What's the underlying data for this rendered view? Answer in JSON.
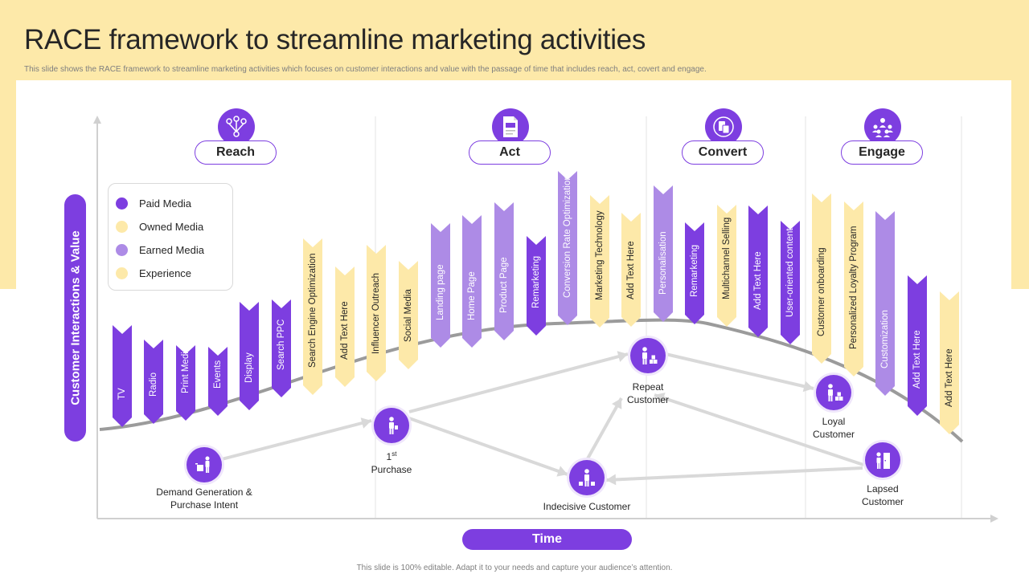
{
  "title": "RACE framework to streamline marketing activities",
  "subtitle": "This slide shows the RACE  framework to streamline marketing activities which focuses on customer interactions and value with the passage of time that includes reach, act, covert and engage.",
  "footer": "This slide is 100% editable. Adapt it to your needs and capture your audience’s attention.",
  "axes": {
    "y_label": "Customer Interactions & Value",
    "x_label": "Time"
  },
  "colors": {
    "paid": "#7d3ee0",
    "owned": "#fde9a9",
    "earned": "#ad8be6",
    "experience": "#fde9a9",
    "band": "#fde9a9",
    "curve": "#9b9b9b",
    "flow": "#d9d9d9"
  },
  "legend": [
    {
      "label": "Paid Media",
      "type": "paid"
    },
    {
      "label": "Owned Media",
      "type": "owned"
    },
    {
      "label": "Earned Media",
      "type": "earned"
    },
    {
      "label": "Experience",
      "type": "experience"
    }
  ],
  "phases": [
    {
      "label": "Reach",
      "icon": "network-icon"
    },
    {
      "label": "Act",
      "icon": "document-icon"
    },
    {
      "label": "Convert",
      "icon": "mobile-icon"
    },
    {
      "label": "Engage",
      "icon": "team-icon"
    }
  ],
  "activities": [
    {
      "label": "TV",
      "type": "paid"
    },
    {
      "label": "Radio",
      "type": "paid"
    },
    {
      "label": "Print Media",
      "type": "paid"
    },
    {
      "label": "Events",
      "type": "paid"
    },
    {
      "label": "Display",
      "type": "paid"
    },
    {
      "label": "Search PPC",
      "type": "paid"
    },
    {
      "label": "Search Engine Optimization",
      "type": "owned"
    },
    {
      "label": "Add Text Here",
      "type": "owned"
    },
    {
      "label": "Influencer Outreach",
      "type": "owned"
    },
    {
      "label": "Social Media",
      "type": "owned"
    },
    {
      "label": "Landing page",
      "type": "earned"
    },
    {
      "label": "Home Page",
      "type": "earned"
    },
    {
      "label": "Product Page",
      "type": "earned"
    },
    {
      "label": "Remarketing",
      "type": "paid"
    },
    {
      "label": "Conversion Rate Optimization",
      "type": "earned"
    },
    {
      "label": "Marketing Technology",
      "type": "owned"
    },
    {
      "label": "Add Text Here",
      "type": "owned"
    },
    {
      "label": "Personalisation",
      "type": "earned"
    },
    {
      "label": "Remarketing",
      "type": "paid"
    },
    {
      "label": "Multichannel Selling",
      "type": "owned"
    },
    {
      "label": "Add Text Here",
      "type": "paid"
    },
    {
      "label": "User-oriented content",
      "type": "paid"
    },
    {
      "label": "Customer onboarding",
      "type": "owned"
    },
    {
      "label": "Personalized Loyalty Program",
      "type": "owned"
    },
    {
      "label": "Customization",
      "type": "earned"
    },
    {
      "label": "Add Text Here",
      "type": "paid"
    },
    {
      "label": "Add Text Here",
      "type": "owned"
    }
  ],
  "stages": [
    {
      "label": "Demand Generation &",
      "label2": "Purchase Intent",
      "icon": "person-cart-icon"
    },
    {
      "label": "1",
      "sup": "st",
      "label2": "Purchase",
      "icon": "person-icon"
    },
    {
      "label": "Indecisive  Customer",
      "label2": "",
      "icon": "person-boxes-icon"
    },
    {
      "label": "Repeat",
      "label2": "Customer",
      "icon": "person-boxes-icon"
    },
    {
      "label": "Loyal",
      "label2": "Customer",
      "icon": "person-boxes-icon"
    },
    {
      "label": "Lapsed",
      "label2": "Customer",
      "icon": "person-door-icon"
    }
  ]
}
